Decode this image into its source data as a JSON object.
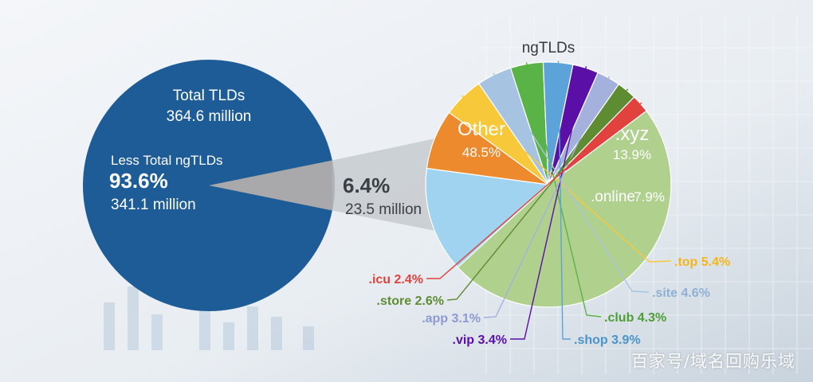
{
  "chart_data": [
    {
      "type": "pie",
      "total_label": "Total TLDs",
      "total_value": "364.6 million",
      "slices": [
        {
          "name": "Less Total ngTLDs",
          "percent_label": "93.6%",
          "value_label": "341.1 million",
          "percent": 93.6,
          "color": "#1d5c96"
        },
        {
          "name": "",
          "percent_label": "6.4%",
          "value_label": "23.5 million",
          "percent": 6.4,
          "color": "#a9a9ab"
        }
      ]
    },
    {
      "type": "pie",
      "title": "ngTLDs",
      "slices": [
        {
          "name": "Other",
          "percent": 48.5,
          "label": "48.5%",
          "color": "#b0d08e",
          "label_color": "#ffffff"
        },
        {
          "name": ".xyz",
          "percent": 13.9,
          "label": "13.9%",
          "color": "#9fd3ef",
          "label_color": "#ffffff"
        },
        {
          "name": ".online",
          "percent": 7.9,
          "label": "7.9%",
          "color": "#ed8a2d",
          "label_color": "#ffffff"
        },
        {
          "name": ".top",
          "percent": 5.4,
          "label": "5.4%",
          "color": "#f7c93a",
          "label_color": "#f4b619"
        },
        {
          "name": ".site",
          "percent": 4.6,
          "label": "4.6%",
          "color": "#a7c3e2",
          "label_color": "#8fb0d4"
        },
        {
          "name": ".club",
          "percent": 4.3,
          "label": "4.3%",
          "color": "#5ab347",
          "label_color": "#4c9e36"
        },
        {
          "name": ".shop",
          "percent": 3.9,
          "label": "3.9%",
          "color": "#5ba3d8",
          "label_color": "#4b93c8"
        },
        {
          "name": ".vip",
          "percent": 3.4,
          "label": "3.4%",
          "color": "#5a0fa6",
          "label_color": "#5a0fa6"
        },
        {
          "name": ".app",
          "percent": 3.1,
          "label": "3.1%",
          "color": "#a5b1dd",
          "label_color": "#8e9ad0"
        },
        {
          "name": ".store",
          "percent": 2.6,
          "label": "2.6%",
          "color": "#5e8c32",
          "label_color": "#5e8c32"
        },
        {
          "name": ".icu",
          "percent": 2.4,
          "label": "2.4%",
          "color": "#e2423d",
          "label_color": "#e2423d"
        }
      ]
    }
  ],
  "watermark": "百家号/域名回购乐域"
}
